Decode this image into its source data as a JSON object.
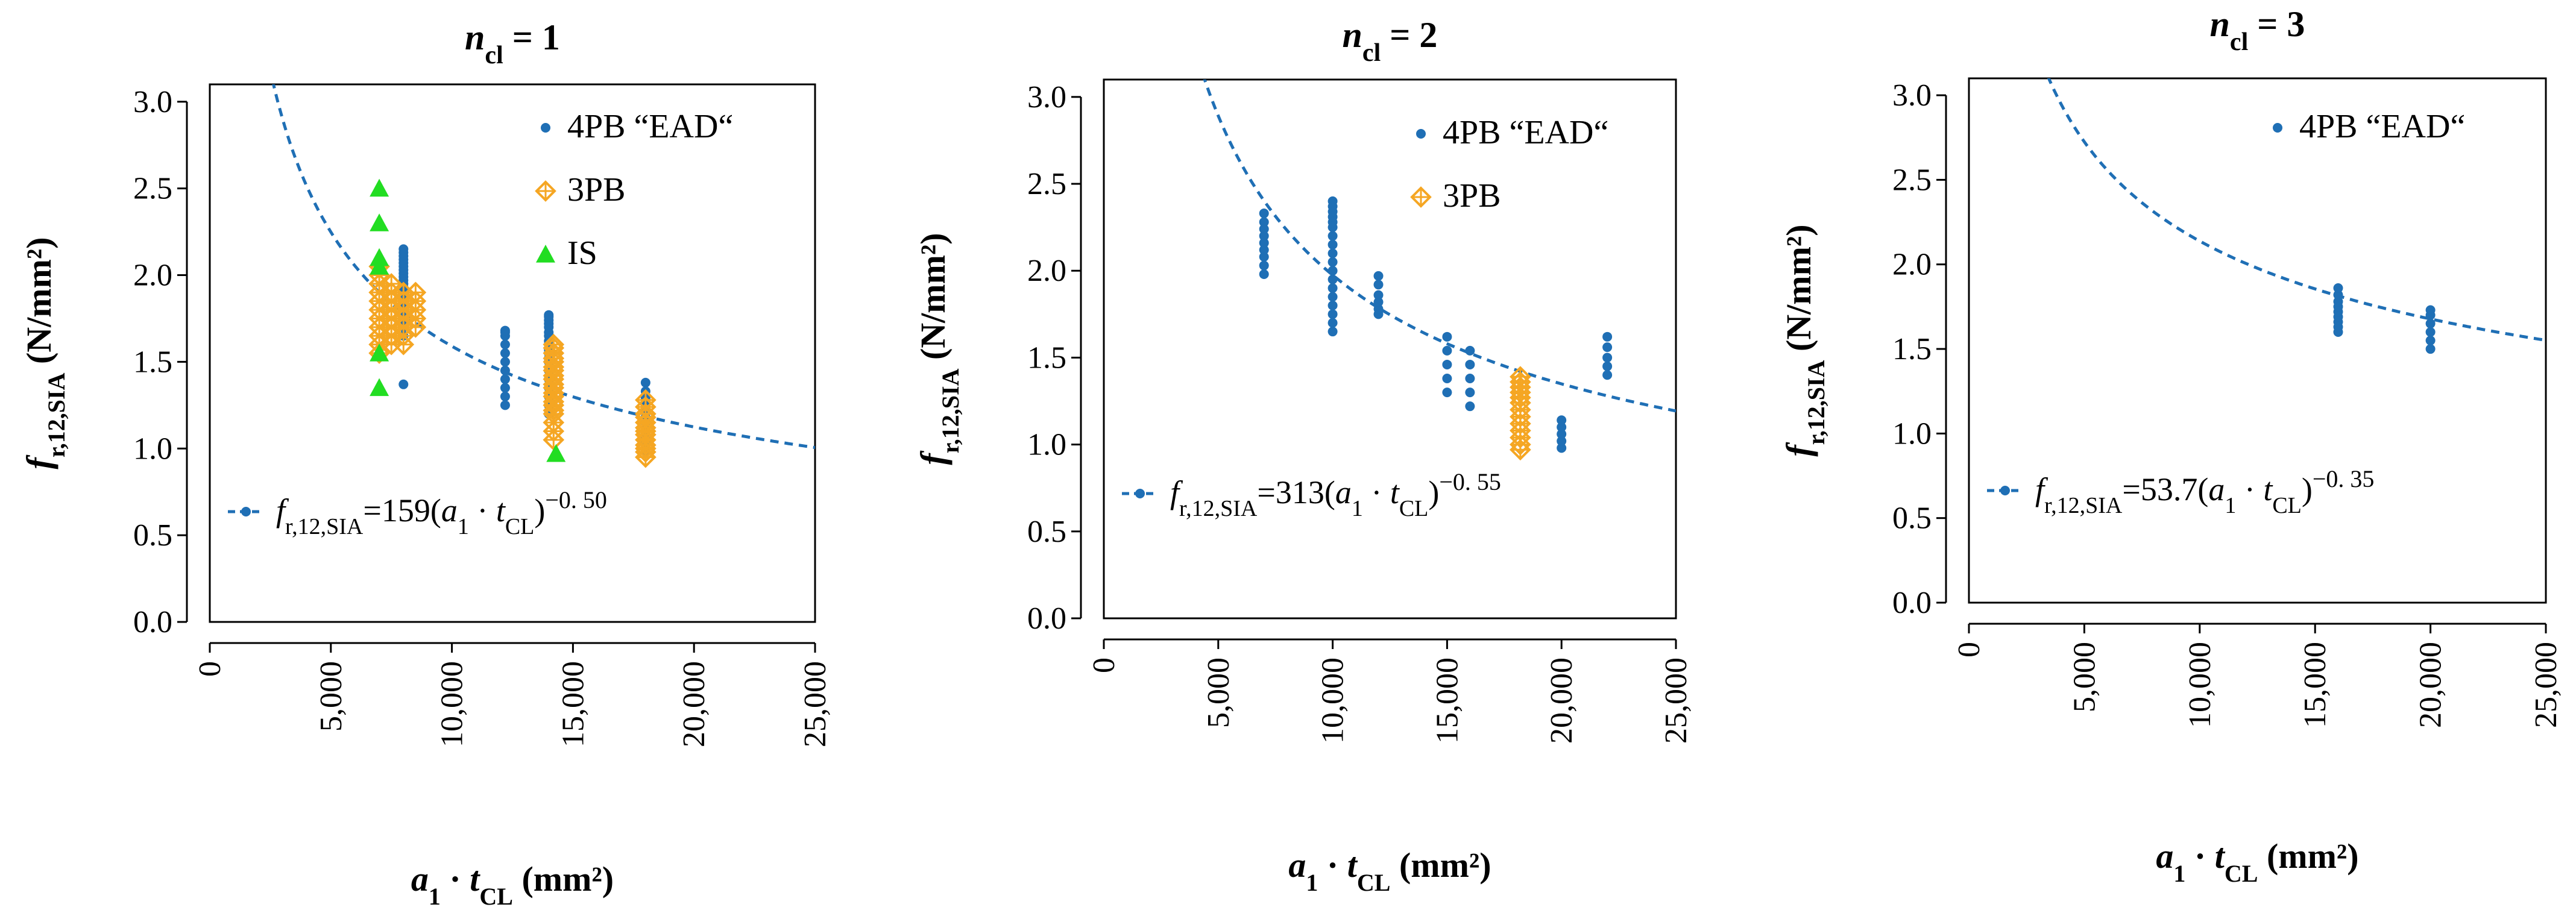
{
  "figure": {
    "layout": "three panels side by side"
  },
  "chart_data": [
    {
      "type": "scatter",
      "title": {
        "italic": "n",
        "sub": "cl",
        "rest": " = 1"
      },
      "xlabel": {
        "italic": "a",
        "sub1": "1",
        "mid": " · ",
        "italic2": "t",
        "sub2": "CL",
        "rest": " (mm²)"
      },
      "ylabel": {
        "italic": "f",
        "sub": "r,12,SIA",
        "rest": " (N/mm²)"
      },
      "xlim": [
        0,
        25000
      ],
      "ylim": [
        0,
        3.1
      ],
      "xticks": [
        0,
        5000,
        10000,
        15000,
        20000,
        25000
      ],
      "xtick_labels": [
        "0",
        "5,000",
        "10,000",
        "15,000",
        "20,000",
        "25,000"
      ],
      "yticks": [
        0,
        0.5,
        1.0,
        1.5,
        2.0,
        2.5,
        3.0
      ],
      "ytick_labels": [
        "0.0",
        "0.5",
        "1.0",
        "1.5",
        "2.0",
        "2.5",
        "3.0"
      ],
      "grid": false,
      "legend": {
        "position": "top-right",
        "entries": [
          {
            "name": "4PB “EAD“",
            "marker": "circle",
            "color": "#1f6fb5"
          },
          {
            "name": "3PB",
            "marker": "diamond-plus",
            "color": "#f5a623"
          },
          {
            "name": "IS",
            "marker": "triangle",
            "color": "#22dd22"
          }
        ]
      },
      "fit": {
        "a": 159,
        "b": -0.5,
        "color": "#1f6fb5",
        "label": {
          "f": "f",
          "sub": "r,12,SIA",
          "coef": "=159(",
          "a": "a",
          "a_sub": "1",
          "dot": " · ",
          "t": "t",
          "t_sub": "CL",
          "close": ")",
          "exp": "−0. 50"
        }
      },
      "series": [
        {
          "name": "4PB “EAD“",
          "marker": "circle",
          "color": "#1f6fb5",
          "x": [
            8000,
            8000,
            8000,
            8000,
            8000,
            8000,
            8000,
            8000,
            8000,
            8000,
            8000,
            8000,
            8000,
            8000,
            8000,
            8000,
            8000,
            8000,
            8000,
            8000,
            8000,
            8000,
            12200,
            12200,
            12200,
            12200,
            12200,
            12200,
            12200,
            12200,
            12200,
            12200,
            12200,
            14000,
            14000,
            14000,
            14000,
            14000,
            14000,
            14000,
            14000,
            14000,
            14000,
            14000,
            14000,
            14000,
            14000,
            14000,
            14000,
            14000,
            14000,
            14000,
            18000,
            18000,
            18000,
            18000,
            18000,
            18000,
            18000,
            18000,
            18000,
            18000,
            18000,
            18000,
            18000
          ],
          "y": [
            1.37,
            1.65,
            1.7,
            1.74,
            1.78,
            1.82,
            1.85,
            1.87,
            1.89,
            1.91,
            1.93,
            1.95,
            1.97,
            1.99,
            2.01,
            2.03,
            2.05,
            2.07,
            2.09,
            2.11,
            2.13,
            2.15,
            1.25,
            1.3,
            1.35,
            1.4,
            1.45,
            1.5,
            1.55,
            1.6,
            1.65,
            1.67,
            1.68,
            1.2,
            1.25,
            1.3,
            1.35,
            1.4,
            1.45,
            1.5,
            1.52,
            1.55,
            1.57,
            1.6,
            1.62,
            1.65,
            1.67,
            1.7,
            1.72,
            1.74,
            1.76,
            1.77,
            0.98,
            1.0,
            1.03,
            1.06,
            1.09,
            1.12,
            1.15,
            1.18,
            1.21,
            1.25,
            1.29,
            1.33,
            1.38
          ]
        },
        {
          "name": "3PB",
          "marker": "diamond-plus",
          "color": "#f5a623",
          "x": [
            7000,
            7000,
            7000,
            7000,
            7000,
            7000,
            7000,
            7000,
            7000,
            7000,
            7000,
            7500,
            7500,
            7500,
            7500,
            7500,
            7500,
            7500,
            7500,
            8000,
            8000,
            8000,
            8000,
            8000,
            8000,
            8000,
            8500,
            8500,
            8500,
            8500,
            8500,
            14200,
            14200,
            14200,
            14200,
            14200,
            14200,
            14200,
            14200,
            14200,
            14200,
            14200,
            14200,
            14200,
            14200,
            14200,
            14200,
            14200,
            14200,
            14200,
            14200,
            18000,
            18000,
            18000,
            18000,
            18000,
            18000,
            18000,
            18000,
            18000,
            18000,
            18000,
            18000,
            18000
          ],
          "y": [
            1.55,
            1.6,
            1.65,
            1.7,
            1.75,
            1.8,
            1.85,
            1.9,
            1.95,
            2.0,
            2.05,
            1.6,
            1.65,
            1.7,
            1.75,
            1.8,
            1.85,
            1.9,
            1.95,
            1.6,
            1.65,
            1.7,
            1.75,
            1.8,
            1.85,
            1.9,
            1.7,
            1.75,
            1.8,
            1.85,
            1.9,
            1.05,
            1.1,
            1.15,
            1.2,
            1.22,
            1.25,
            1.27,
            1.3,
            1.32,
            1.35,
            1.37,
            1.4,
            1.42,
            1.45,
            1.47,
            1.5,
            1.52,
            1.55,
            1.58,
            1.6,
            0.95,
            0.98,
            1.0,
            1.02,
            1.05,
            1.08,
            1.1,
            1.12,
            1.15,
            1.18,
            1.2,
            1.24,
            1.28
          ]
        },
        {
          "name": "IS",
          "marker": "triangle",
          "color": "#22dd22",
          "x": [
            7000,
            7000,
            7000,
            7000,
            7000,
            7000,
            14300
          ],
          "y": [
            1.35,
            1.55,
            2.05,
            2.1,
            2.3,
            2.5,
            0.97
          ]
        }
      ]
    },
    {
      "type": "scatter",
      "title": {
        "italic": "n",
        "sub": "cl",
        "rest": " = 2"
      },
      "xlabel": {
        "italic": "a",
        "sub1": "1",
        "mid": " · ",
        "italic2": "t",
        "sub2": "CL",
        "rest": " (mm²)"
      },
      "ylabel": {
        "italic": "f",
        "sub": "r,12,SIA",
        "rest": " (N/mm²)"
      },
      "xlim": [
        0,
        25000
      ],
      "ylim": [
        0,
        3.1
      ],
      "xticks": [
        0,
        5000,
        10000,
        15000,
        20000,
        25000
      ],
      "xtick_labels": [
        "0",
        "5,000",
        "10,000",
        "15,000",
        "20,000",
        "25,000"
      ],
      "yticks": [
        0,
        0.5,
        1.0,
        1.5,
        2.0,
        2.5,
        3.0
      ],
      "ytick_labels": [
        "0.0",
        "0.5",
        "1.0",
        "1.5",
        "2.0",
        "2.5",
        "3.0"
      ],
      "grid": false,
      "legend": {
        "position": "top-right",
        "entries": [
          {
            "name": "4PB “EAD“",
            "marker": "circle",
            "color": "#1f6fb5"
          },
          {
            "name": "3PB",
            "marker": "diamond-plus",
            "color": "#f5a623"
          }
        ]
      },
      "fit": {
        "a": 313,
        "b": -0.55,
        "color": "#1f6fb5",
        "label": {
          "f": "f",
          "sub": "r,12,SIA",
          "coef": "=313(",
          "a": "a",
          "a_sub": "1",
          "dot": " · ",
          "t": "t",
          "t_sub": "CL",
          "close": ")",
          "exp": "−0. 55"
        }
      },
      "series": [
        {
          "name": "4PB “EAD“",
          "marker": "circle",
          "color": "#1f6fb5",
          "x": [
            7000,
            7000,
            7000,
            7000,
            7000,
            7000,
            7000,
            7000,
            7000,
            10000,
            10000,
            10000,
            10000,
            10000,
            10000,
            10000,
            10000,
            10000,
            10000,
            10000,
            10000,
            10000,
            10000,
            10000,
            10000,
            10000,
            10000,
            12000,
            12000,
            12000,
            12000,
            12000,
            12000,
            15000,
            15000,
            15000,
            15000,
            15000,
            16000,
            16000,
            16000,
            16000,
            16000,
            20000,
            20000,
            20000,
            20000,
            20000,
            22000,
            22000,
            22000,
            22000,
            22000
          ],
          "y": [
            1.98,
            2.03,
            2.08,
            2.12,
            2.16,
            2.2,
            2.24,
            2.28,
            2.33,
            1.65,
            1.7,
            1.75,
            1.8,
            1.85,
            1.9,
            1.95,
            2.0,
            2.05,
            2.1,
            2.15,
            2.2,
            2.25,
            2.28,
            2.31,
            2.34,
            2.37,
            2.4,
            1.75,
            1.78,
            1.82,
            1.86,
            1.92,
            1.97,
            1.3,
            1.38,
            1.46,
            1.54,
            1.62,
            1.22,
            1.3,
            1.38,
            1.46,
            1.54,
            0.98,
            1.02,
            1.06,
            1.1,
            1.14,
            1.4,
            1.45,
            1.5,
            1.56,
            1.62
          ]
        },
        {
          "name": "3PB",
          "marker": "diamond-plus",
          "color": "#f5a623",
          "x": [
            18200,
            18200,
            18200,
            18200,
            18200,
            18200,
            18200,
            18200,
            18200,
            18200,
            18200,
            18200,
            18200
          ],
          "y": [
            0.97,
            1.0,
            1.04,
            1.08,
            1.12,
            1.16,
            1.2,
            1.24,
            1.27,
            1.3,
            1.33,
            1.36,
            1.39
          ]
        }
      ]
    },
    {
      "type": "scatter",
      "title": {
        "italic": "n",
        "sub": "cl",
        "rest": " = 3"
      },
      "xlabel": {
        "italic": "a",
        "sub1": "1",
        "mid": " · ",
        "italic2": "t",
        "sub2": "CL",
        "rest": " (mm²)"
      },
      "ylabel": {
        "italic": "f",
        "sub": "r,12,SIA",
        "rest": " (N/mm²)"
      },
      "xlim": [
        0,
        25000
      ],
      "ylim": [
        0,
        3.1
      ],
      "xticks": [
        0,
        5000,
        10000,
        15000,
        20000,
        25000
      ],
      "xtick_labels": [
        "0",
        "5,000",
        "10,000",
        "15,000",
        "20,000",
        "25,000"
      ],
      "yticks": [
        0,
        0.5,
        1.0,
        1.5,
        2.0,
        2.5,
        3.0
      ],
      "ytick_labels": [
        "0.0",
        "0.5",
        "1.0",
        "1.5",
        "2.0",
        "2.5",
        "3.0"
      ],
      "grid": false,
      "legend": {
        "position": "top-right",
        "entries": [
          {
            "name": "4PB “EAD“",
            "marker": "circle",
            "color": "#1f6fb5"
          }
        ]
      },
      "fit": {
        "a": 53.7,
        "b": -0.35,
        "color": "#1f6fb5",
        "label": {
          "f": "f",
          "sub": "r,12,SIA",
          "coef": "=53.7(",
          "a": "a",
          "a_sub": "1",
          "dot": " · ",
          "t": "t",
          "t_sub": "CL",
          "close": ")",
          "exp": "−0. 35"
        }
      },
      "series": [
        {
          "name": "4PB “EAD“",
          "marker": "circle",
          "color": "#1f6fb5",
          "x": [
            16000,
            16000,
            16000,
            16000,
            16000,
            16000,
            16000,
            16000,
            16000,
            20000,
            20000,
            20000,
            20000,
            20000,
            20000
          ],
          "y": [
            1.6,
            1.63,
            1.66,
            1.69,
            1.72,
            1.75,
            1.78,
            1.82,
            1.86,
            1.5,
            1.55,
            1.6,
            1.65,
            1.7,
            1.73
          ]
        }
      ]
    }
  ]
}
